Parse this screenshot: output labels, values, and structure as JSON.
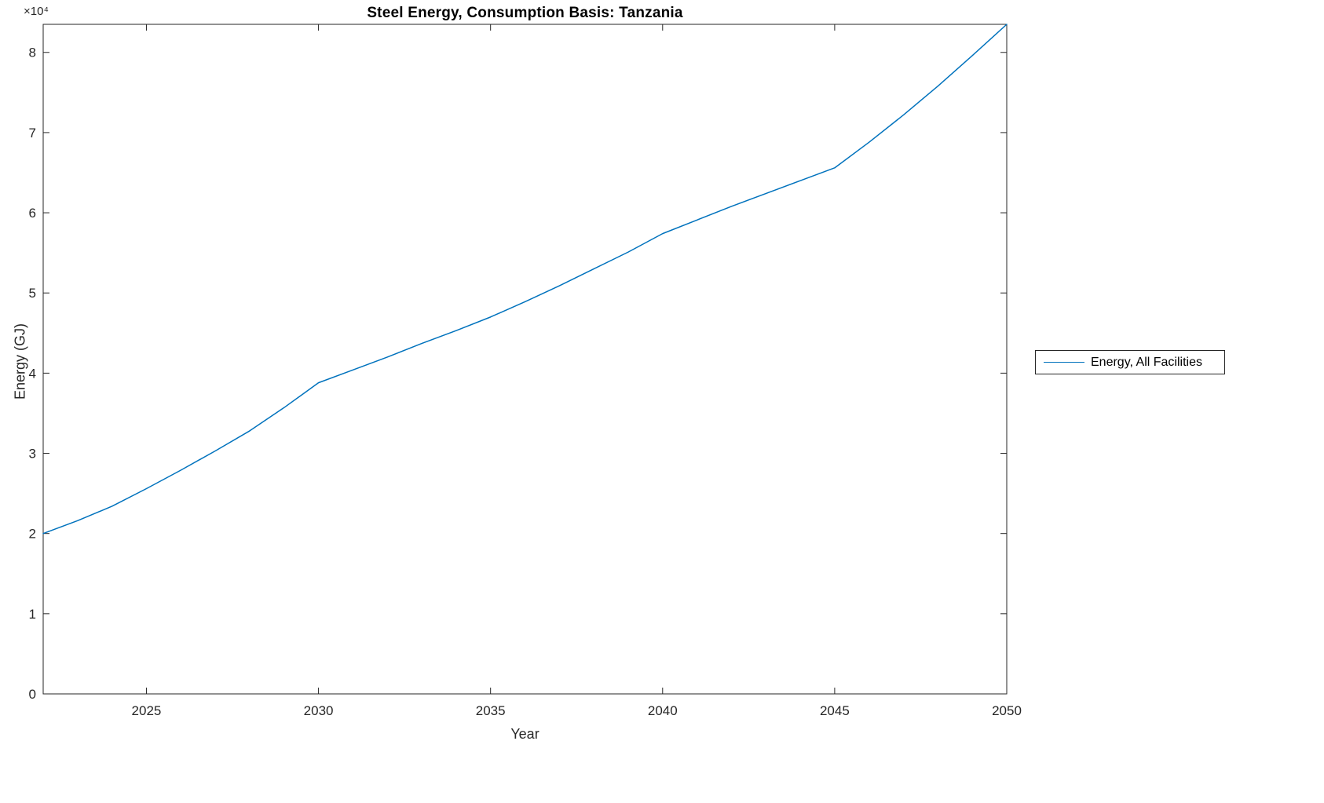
{
  "figure": {
    "background": "#ffffff"
  },
  "chart_data": {
    "type": "line",
    "title": "Steel Energy, Consumption Basis: Tanzania",
    "xlabel": "Year",
    "ylabel": "Energy (GJ)",
    "y_axis_multiplier": "×10⁴",
    "xlim": [
      2022,
      2050
    ],
    "ylim": [
      0,
      8.35
    ],
    "xticks": [
      2025,
      2030,
      2035,
      2040,
      2045,
      2050
    ],
    "yticks": [
      0,
      1,
      2,
      3,
      4,
      5,
      6,
      7,
      8
    ],
    "grid": false,
    "axis_color": "#262626",
    "legend": {
      "position": "outside-right",
      "entries": [
        {
          "label": "Energy, All Facilities",
          "color": "#0072BD"
        }
      ]
    },
    "series": [
      {
        "name": "Energy, All Facilities",
        "color": "#0072BD",
        "units": "10^4 GJ",
        "x": [
          2022,
          2023,
          2024,
          2025,
          2026,
          2027,
          2028,
          2029,
          2030,
          2031,
          2032,
          2033,
          2034,
          2035,
          2036,
          2037,
          2038,
          2039,
          2040,
          2041,
          2042,
          2043,
          2044,
          2045,
          2046,
          2047,
          2048,
          2049,
          2050
        ],
        "y": [
          2.0,
          2.16,
          2.34,
          2.56,
          2.79,
          3.03,
          3.28,
          3.57,
          3.88,
          4.04,
          4.2,
          4.37,
          4.53,
          4.7,
          4.89,
          5.09,
          5.3,
          5.51,
          5.74,
          5.91,
          6.08,
          6.24,
          6.4,
          6.56,
          6.88,
          7.22,
          7.58,
          7.96,
          8.35
        ]
      }
    ]
  }
}
